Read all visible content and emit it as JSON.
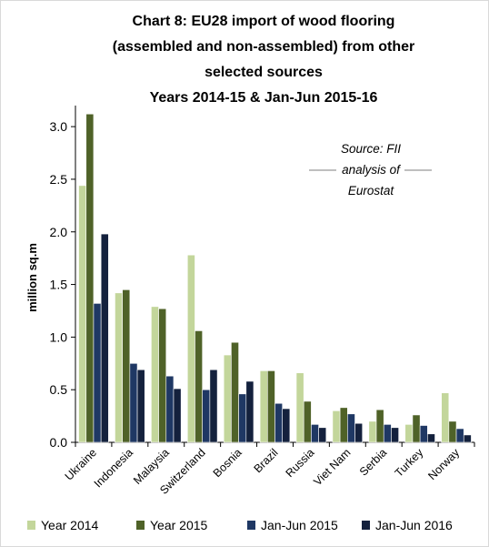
{
  "chart_data": {
    "type": "bar",
    "title_lines": [
      "Chart 8: EU28 import of wood flooring",
      "(assembled and non-assembled) from other",
      "selected sources",
      "Years 2014-15 & Jan-Jun 2015-16"
    ],
    "ylabel": "million sq.m",
    "xlabel": "",
    "ylim": [
      0,
      3.2
    ],
    "yticks": [
      "0.0",
      "0.5",
      "1.0",
      "1.5",
      "2.0",
      "2.5",
      "3.0"
    ],
    "ytick_values": [
      0,
      0.5,
      1.0,
      1.5,
      2.0,
      2.5,
      3.0
    ],
    "grid": false,
    "legend_position": "bottom",
    "annotation_lines": [
      "Source: FII",
      "analysis of",
      "Eurostat"
    ],
    "categories": [
      "Ukraine",
      "Indonesia",
      "Malaysia",
      "Switzerland",
      "Bosnia",
      "Brazil",
      "Russia",
      "Viet Nam",
      "Serbia",
      "Turkey",
      "Norway"
    ],
    "series": [
      {
        "name": "Year 2014",
        "color": "#c3d69b",
        "values": [
          2.44,
          1.42,
          1.29,
          1.78,
          0.83,
          0.68,
          0.66,
          0.3,
          0.2,
          0.17,
          0.47
        ]
      },
      {
        "name": "Year 2015",
        "color": "#4f6228",
        "values": [
          3.12,
          1.45,
          1.27,
          1.06,
          0.95,
          0.68,
          0.39,
          0.33,
          0.31,
          0.26,
          0.2
        ]
      },
      {
        "name": "Jan-Jun 2015",
        "color": "#1f3864",
        "values": [
          1.32,
          0.75,
          0.63,
          0.5,
          0.46,
          0.37,
          0.17,
          0.27,
          0.17,
          0.16,
          0.13
        ]
      },
      {
        "name": "Jan-Jun 2016",
        "color": "#14213d",
        "values": [
          1.98,
          0.69,
          0.51,
          0.69,
          0.58,
          0.32,
          0.14,
          0.18,
          0.14,
          0.08,
          0.07
        ]
      }
    ]
  }
}
